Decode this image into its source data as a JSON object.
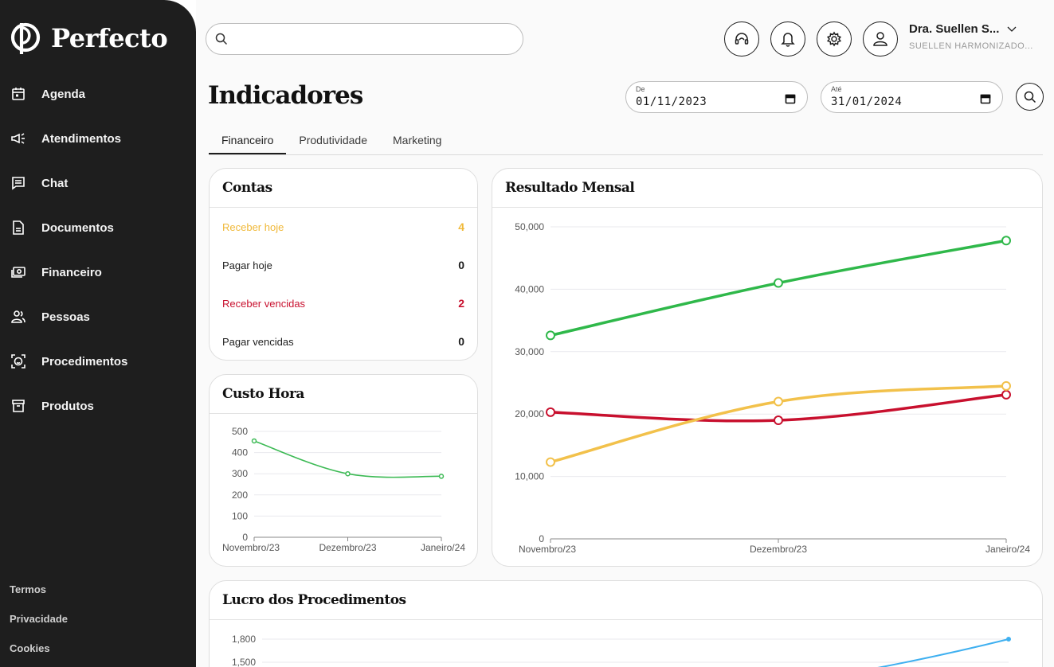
{
  "brand": {
    "name": "Perfecto"
  },
  "sidebar": {
    "items": [
      {
        "label": "Agenda",
        "icon": "calendar-icon"
      },
      {
        "label": "Atendimentos",
        "icon": "megaphone-icon"
      },
      {
        "label": "Chat",
        "icon": "chat-icon"
      },
      {
        "label": "Documentos",
        "icon": "document-icon"
      },
      {
        "label": "Financeiro",
        "icon": "money-icon"
      },
      {
        "label": "Pessoas",
        "icon": "people-icon"
      },
      {
        "label": "Procedimentos",
        "icon": "face-icon"
      },
      {
        "label": "Produtos",
        "icon": "box-icon"
      }
    ],
    "footer": [
      "Termos",
      "Privacidade",
      "Cookies"
    ]
  },
  "header": {
    "search_placeholder": "",
    "user_name": "Dra. Suellen S...",
    "user_org": "SUELLEN HARMONIZADO..."
  },
  "page": {
    "title": "Indicadores",
    "date_from_label": "De",
    "date_from": "01/11/2023",
    "date_to_label": "Até",
    "date_to": "31/01/2024",
    "tabs": [
      "Financeiro",
      "Produtividade",
      "Marketing"
    ],
    "active_tab": "Financeiro"
  },
  "contas": {
    "title": "Contas",
    "rows": [
      {
        "label": "Receber hoje",
        "value": "4",
        "color": "#f0b93a"
      },
      {
        "label": "Pagar hoje",
        "value": "0",
        "color": "#1d1d1d"
      },
      {
        "label": "Receber vencidas",
        "value": "2",
        "color": "#c8102e"
      },
      {
        "label": "Pagar vencidas",
        "value": "0",
        "color": "#1d1d1d"
      }
    ]
  },
  "chart_data": [
    {
      "type": "line",
      "title": "Custo Hora",
      "categories": [
        "Novembro/23",
        "Dezembro/23",
        "Janeiro/24"
      ],
      "ylim": [
        0,
        500
      ],
      "yticks": [
        0,
        100,
        200,
        300,
        400,
        500
      ],
      "yticklabels": [
        "0",
        "100",
        "200",
        "300",
        "400",
        "500"
      ],
      "series": [
        {
          "values": [
            455,
            300,
            288
          ],
          "color": "#3dba55"
        }
      ]
    },
    {
      "type": "line",
      "title": "Resultado Mensal",
      "categories": [
        "Novembro/23",
        "Dezembro/23",
        "Janeiro/24"
      ],
      "ylim": [
        0,
        50000
      ],
      "yticks": [
        0,
        10000,
        20000,
        30000,
        40000,
        50000
      ],
      "yticklabels": [
        "0",
        "10,000",
        "20,000",
        "30,000",
        "40,000",
        "50,000"
      ],
      "series": [
        {
          "values": [
            32600,
            41000,
            47800
          ],
          "color": "#2fb84a"
        },
        {
          "values": [
            20300,
            19000,
            23100
          ],
          "color": "#c8102e"
        },
        {
          "values": [
            12300,
            22000,
            24500
          ],
          "color": "#f2c14b"
        }
      ]
    },
    {
      "type": "line",
      "title": "Lucro dos Procedimentos",
      "ylim": [
        1500,
        1800
      ],
      "yticks": [
        1500,
        1800
      ],
      "yticklabels": [
        "1,500",
        "1,800"
      ],
      "series": [
        {
          "values": [
            1500,
            1800
          ],
          "color": "#3fb0f0"
        }
      ]
    }
  ]
}
